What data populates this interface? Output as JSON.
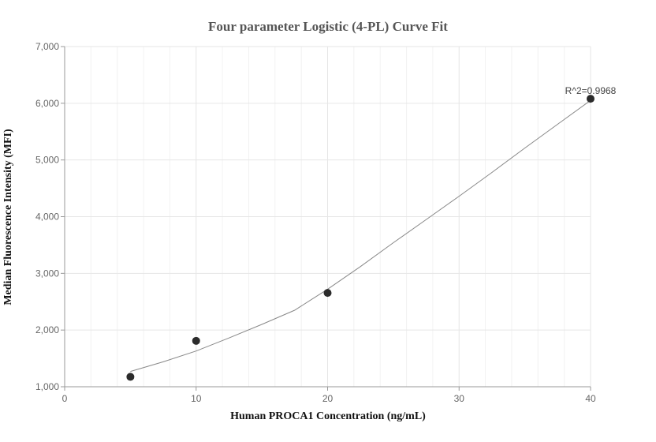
{
  "chart_data": {
    "type": "scatter",
    "title": "Four parameter Logistic (4-PL) Curve Fit",
    "xlabel": "Human PROCA1 Concentration (ng/mL)",
    "ylabel": "Median Fluorescence Intensity (MFI)",
    "xlim": [
      0,
      40
    ],
    "ylim": [
      1000,
      7000
    ],
    "x_ticks": [
      0,
      10,
      20,
      30,
      40
    ],
    "x_tick_labels": [
      "0",
      "10",
      "20",
      "30",
      "40"
    ],
    "y_ticks": [
      1000,
      2000,
      3000,
      4000,
      5000,
      6000,
      7000
    ],
    "y_tick_labels": [
      "1,000",
      "2,000",
      "3,000",
      "4,000",
      "5,000",
      "6,000",
      "7,000"
    ],
    "grid": true,
    "points": [
      {
        "x": 5,
        "y": 1175
      },
      {
        "x": 10,
        "y": 1810
      },
      {
        "x": 20,
        "y": 2655
      },
      {
        "x": 40,
        "y": 6080
      }
    ],
    "fit_curve": {
      "x": [
        5,
        7.5,
        10,
        12.5,
        15,
        17.5,
        20,
        22.5,
        25,
        27.5,
        30,
        32.5,
        35,
        37.5,
        40
      ],
      "y": [
        1270,
        1440,
        1630,
        1860,
        2100,
        2350,
        2720,
        3120,
        3540,
        3950,
        4360,
        4780,
        5210,
        5630,
        6050
      ]
    },
    "annotation": "R^2=0.9968",
    "colors": {
      "point": "#2b2b2b",
      "curve": "#888888",
      "grid_major": "#e6e6e6",
      "grid_minor": "#f2f2f2",
      "axis": "#999999"
    }
  }
}
